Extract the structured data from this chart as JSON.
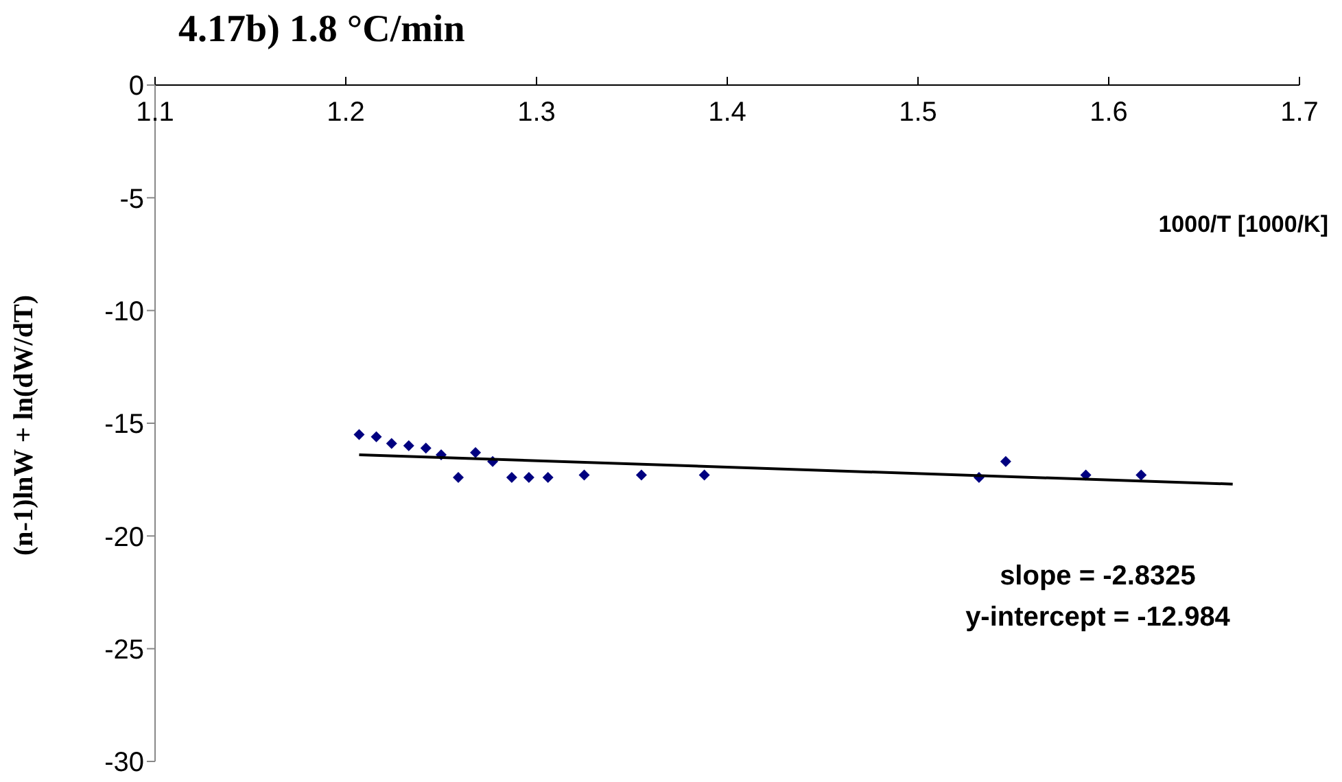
{
  "chart_data": {
    "type": "scatter",
    "title": "4.17b) 1.8 °C/min",
    "xlabel": "1000/T [1000/K]",
    "ylabel": "(n-1)lnW + ln(dW/dT)",
    "xlim": [
      1.1,
      1.7
    ],
    "xticks": [
      1.1,
      1.2,
      1.3,
      1.4,
      1.5,
      1.6,
      1.7
    ],
    "ylim": [
      -30,
      0
    ],
    "yticks": [
      -30,
      -25,
      -20,
      -15,
      -10,
      -5,
      0
    ],
    "grid": false,
    "legend": false,
    "series": [
      {
        "marker": "diamond",
        "color": "#000080",
        "x": [
          1.207,
          1.216,
          1.224,
          1.233,
          1.242,
          1.25,
          1.259,
          1.268,
          1.277,
          1.287,
          1.296,
          1.306,
          1.325,
          1.355,
          1.388,
          1.532,
          1.546,
          1.588,
          1.617
        ],
        "values": [
          -15.5,
          -15.6,
          -15.9,
          -16.0,
          -16.1,
          -16.4,
          -17.4,
          -16.3,
          -16.7,
          -17.4,
          -17.4,
          -17.4,
          -17.3,
          -17.3,
          -17.3,
          -17.4,
          -16.7,
          -17.3,
          -17.3
        ]
      },
      {
        "type": "line",
        "marker": "none",
        "color": "#000000",
        "x": [
          1.207,
          1.665
        ],
        "values": [
          -16.4,
          -17.7
        ]
      }
    ],
    "annotations": [
      "slope = -2.8325",
      "y-intercept = -12.984"
    ]
  }
}
